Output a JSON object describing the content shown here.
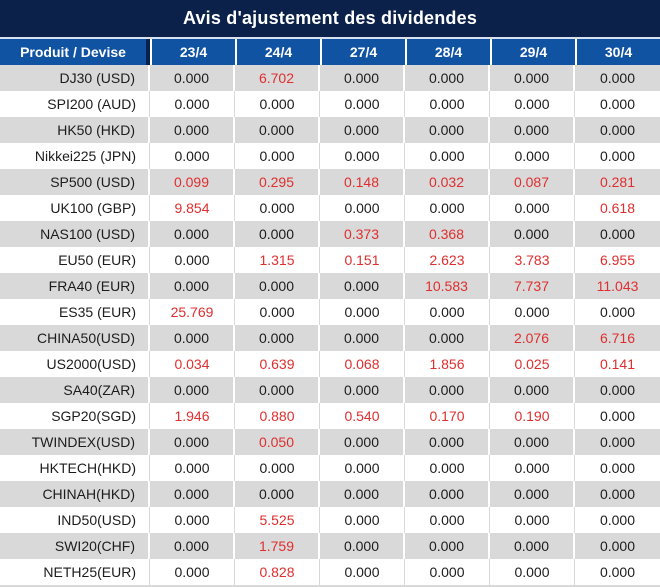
{
  "colors": {
    "title_bg": "#0b2149",
    "header_bg": "#1153a3",
    "separator": "#d9e1f0",
    "row_alt_bg": "#d9d9d9",
    "gridline": "#d8d8d8",
    "text": "#1c1c1c",
    "red": "#e02e2e"
  },
  "chart_data": {
    "type": "table",
    "title": "Avis d'ajustement des dividendes",
    "columns": [
      "Produit / Devise",
      "23/4",
      "24/4",
      "27/4",
      "28/4",
      "29/4",
      "30/4"
    ],
    "highlight_rule": "non-zero adjustment values are rendered in red",
    "rows": [
      {
        "product": "DJ30 (USD)",
        "values": [
          "0.000",
          "6.702",
          "0.000",
          "0.000",
          "0.000",
          "0.000"
        ]
      },
      {
        "product": "SPI200 (AUD)",
        "values": [
          "0.000",
          "0.000",
          "0.000",
          "0.000",
          "0.000",
          "0.000"
        ]
      },
      {
        "product": "HK50 (HKD)",
        "values": [
          "0.000",
          "0.000",
          "0.000",
          "0.000",
          "0.000",
          "0.000"
        ]
      },
      {
        "product": "Nikkei225 (JPN)",
        "values": [
          "0.000",
          "0.000",
          "0.000",
          "0.000",
          "0.000",
          "0.000"
        ]
      },
      {
        "product": "SP500 (USD)",
        "values": [
          "0.099",
          "0.295",
          "0.148",
          "0.032",
          "0.087",
          "0.281"
        ]
      },
      {
        "product": "UK100 (GBP)",
        "values": [
          "9.854",
          "0.000",
          "0.000",
          "0.000",
          "0.000",
          "0.618"
        ]
      },
      {
        "product": "NAS100 (USD)",
        "values": [
          "0.000",
          "0.000",
          "0.373",
          "0.368",
          "0.000",
          "0.000"
        ]
      },
      {
        "product": "EU50 (EUR)",
        "values": [
          "0.000",
          "1.315",
          "0.151",
          "2.623",
          "3.783",
          "6.955"
        ]
      },
      {
        "product": "FRA40 (EUR)",
        "values": [
          "0.000",
          "0.000",
          "0.000",
          "10.583",
          "7.737",
          "11.043"
        ]
      },
      {
        "product": "ES35 (EUR)",
        "values": [
          "25.769",
          "0.000",
          "0.000",
          "0.000",
          "0.000",
          "0.000"
        ]
      },
      {
        "product": "CHINA50(USD)",
        "values": [
          "0.000",
          "0.000",
          "0.000",
          "0.000",
          "2.076",
          "6.716"
        ]
      },
      {
        "product": "US2000(USD)",
        "values": [
          "0.034",
          "0.639",
          "0.068",
          "1.856",
          "0.025",
          "0.141"
        ]
      },
      {
        "product": "SA40(ZAR)",
        "values": [
          "0.000",
          "0.000",
          "0.000",
          "0.000",
          "0.000",
          "0.000"
        ]
      },
      {
        "product": "SGP20(SGD)",
        "values": [
          "1.946",
          "0.880",
          "0.540",
          "0.170",
          "0.190",
          "0.000"
        ]
      },
      {
        "product": "TWINDEX(USD)",
        "values": [
          "0.000",
          "0.050",
          "0.000",
          "0.000",
          "0.000",
          "0.000"
        ]
      },
      {
        "product": "HKTECH(HKD)",
        "values": [
          "0.000",
          "0.000",
          "0.000",
          "0.000",
          "0.000",
          "0.000"
        ]
      },
      {
        "product": "CHINAH(HKD)",
        "values": [
          "0.000",
          "0.000",
          "0.000",
          "0.000",
          "0.000",
          "0.000"
        ]
      },
      {
        "product": "IND50(USD)",
        "values": [
          "0.000",
          "5.525",
          "0.000",
          "0.000",
          "0.000",
          "0.000"
        ]
      },
      {
        "product": "SWI20(CHF)",
        "values": [
          "0.000",
          "1.759",
          "0.000",
          "0.000",
          "0.000",
          "0.000"
        ]
      },
      {
        "product": "NETH25(EUR)",
        "values": [
          "0.000",
          "0.828",
          "0.000",
          "0.000",
          "0.000",
          "0.000"
        ]
      }
    ]
  }
}
